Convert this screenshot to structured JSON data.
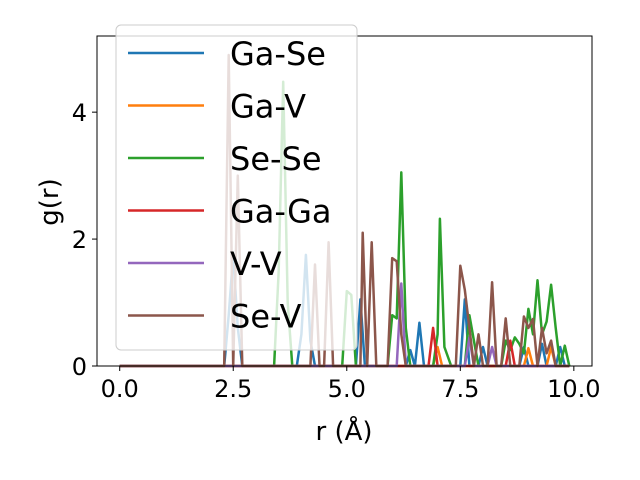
{
  "chart_data": {
    "type": "line",
    "title": "",
    "xlabel": "r (Å)",
    "ylabel": "g(r)",
    "xlim": [
      -0.5,
      10.4
    ],
    "ylim": [
      0,
      5.2
    ],
    "xticks": [
      0.0,
      2.5,
      5.0,
      7.5,
      10.0
    ],
    "xtick_labels": [
      "0.0",
      "2.5",
      "5.0",
      "7.5",
      "10.0"
    ],
    "yticks": [
      0,
      2,
      4
    ],
    "ytick_labels": [
      "0",
      "2",
      "4"
    ],
    "grid": false,
    "legend_position": "upper-left",
    "series": [
      {
        "name": "Ga-Se",
        "color": "#1f77b4",
        "points": [
          [
            0.0,
            0
          ],
          [
            2.3,
            0
          ],
          [
            2.4,
            0.8
          ],
          [
            2.5,
            1.75
          ],
          [
            2.6,
            0.6
          ],
          [
            2.7,
            0
          ],
          [
            3.9,
            0
          ],
          [
            4.0,
            0.5
          ],
          [
            4.1,
            1.75
          ],
          [
            4.2,
            0.4
          ],
          [
            4.3,
            0
          ],
          [
            5.2,
            0
          ],
          [
            5.3,
            1.05
          ],
          [
            5.4,
            0
          ],
          [
            6.3,
            0
          ],
          [
            6.4,
            0.25
          ],
          [
            6.5,
            0
          ],
          [
            6.6,
            0.68
          ],
          [
            6.7,
            0
          ],
          [
            7.5,
            0
          ],
          [
            7.6,
            1.05
          ],
          [
            7.7,
            0
          ],
          [
            7.9,
            0
          ],
          [
            8.0,
            0.3
          ],
          [
            8.1,
            0
          ],
          [
            8.8,
            0
          ],
          [
            8.9,
            0.3
          ],
          [
            9.0,
            0
          ],
          [
            9.2,
            0
          ],
          [
            9.3,
            0.35
          ],
          [
            9.4,
            0
          ],
          [
            9.6,
            0
          ],
          [
            9.7,
            0.3
          ],
          [
            9.8,
            0
          ],
          [
            9.9,
            0
          ]
        ]
      },
      {
        "name": "Ga-V",
        "color": "#ff7f0e",
        "points": [
          [
            0.0,
            0
          ],
          [
            6.9,
            0
          ],
          [
            7.0,
            0.3
          ],
          [
            7.1,
            0
          ],
          [
            8.9,
            0
          ],
          [
            9.0,
            0.28
          ],
          [
            9.1,
            0
          ],
          [
            9.4,
            0
          ],
          [
            9.5,
            0.3
          ],
          [
            9.6,
            0
          ],
          [
            9.9,
            0
          ]
        ]
      },
      {
        "name": "Se-Se",
        "color": "#2ca02c",
        "points": [
          [
            0.0,
            0
          ],
          [
            3.4,
            0
          ],
          [
            3.5,
            1.5
          ],
          [
            3.6,
            4.48
          ],
          [
            3.7,
            1.0
          ],
          [
            3.8,
            0
          ],
          [
            4.9,
            0
          ],
          [
            5.0,
            1.18
          ],
          [
            5.1,
            1.12
          ],
          [
            5.2,
            0
          ],
          [
            5.9,
            0
          ],
          [
            6.0,
            0.8
          ],
          [
            6.1,
            0.75
          ],
          [
            6.2,
            3.05
          ],
          [
            6.3,
            0.6
          ],
          [
            6.4,
            0
          ],
          [
            6.9,
            0
          ],
          [
            7.0,
            0.5
          ],
          [
            7.05,
            2.32
          ],
          [
            7.15,
            0.3
          ],
          [
            7.3,
            0
          ],
          [
            7.6,
            0
          ],
          [
            7.7,
            0.8
          ],
          [
            7.8,
            0.4
          ],
          [
            7.9,
            0
          ],
          [
            8.4,
            0
          ],
          [
            8.5,
            0.4
          ],
          [
            8.6,
            0.25
          ],
          [
            8.7,
            0.45
          ],
          [
            8.8,
            0.35
          ],
          [
            8.9,
            0.2
          ],
          [
            9.0,
            0.9
          ],
          [
            9.1,
            0.5
          ],
          [
            9.2,
            1.35
          ],
          [
            9.3,
            0.5
          ],
          [
            9.4,
            0.7
          ],
          [
            9.5,
            1.28
          ],
          [
            9.6,
            0.6
          ],
          [
            9.7,
            0
          ],
          [
            9.8,
            0.32
          ],
          [
            9.9,
            0
          ]
        ]
      },
      {
        "name": "Ga-Ga",
        "color": "#d62728",
        "points": [
          [
            0.0,
            0
          ],
          [
            6.8,
            0
          ],
          [
            6.9,
            0.6
          ],
          [
            7.0,
            0
          ],
          [
            8.5,
            0
          ],
          [
            8.6,
            0.4
          ],
          [
            8.7,
            0
          ],
          [
            9.9,
            0
          ]
        ]
      },
      {
        "name": "V-V",
        "color": "#9467bd",
        "points": [
          [
            0.0,
            0
          ],
          [
            6.1,
            0
          ],
          [
            6.2,
            1.3
          ],
          [
            6.3,
            0
          ],
          [
            7.6,
            0
          ],
          [
            7.7,
            0.45
          ],
          [
            7.8,
            0
          ],
          [
            8.1,
            0
          ],
          [
            8.2,
            0.3
          ],
          [
            8.3,
            0
          ],
          [
            9.9,
            0
          ]
        ]
      },
      {
        "name": "Se-V",
        "color": "#8c564b",
        "points": [
          [
            0.0,
            0
          ],
          [
            2.3,
            0
          ],
          [
            2.4,
            4.9
          ],
          [
            2.5,
            0
          ],
          [
            2.6,
            3.0
          ],
          [
            2.7,
            0
          ],
          [
            4.2,
            0
          ],
          [
            4.3,
            1.6
          ],
          [
            4.4,
            0
          ],
          [
            4.5,
            0
          ],
          [
            4.6,
            1.95
          ],
          [
            4.7,
            0
          ],
          [
            5.3,
            0
          ],
          [
            5.35,
            2.1
          ],
          [
            5.45,
            0
          ],
          [
            5.55,
            1.95
          ],
          [
            5.65,
            0
          ],
          [
            5.9,
            0
          ],
          [
            6.0,
            1.7
          ],
          [
            6.1,
            1.65
          ],
          [
            6.2,
            0.5
          ],
          [
            6.3,
            0
          ],
          [
            7.4,
            0
          ],
          [
            7.5,
            1.58
          ],
          [
            7.6,
            1.2
          ],
          [
            7.7,
            0.6
          ],
          [
            7.8,
            0
          ],
          [
            7.9,
            0.5
          ],
          [
            8.0,
            0
          ],
          [
            8.1,
            0
          ],
          [
            8.2,
            1.32
          ],
          [
            8.3,
            0
          ],
          [
            8.4,
            0
          ],
          [
            8.5,
            0.75
          ],
          [
            8.6,
            0
          ],
          [
            8.8,
            0
          ],
          [
            8.9,
            0.78
          ],
          [
            9.0,
            0.6
          ],
          [
            9.1,
            0.74
          ],
          [
            9.2,
            0
          ],
          [
            9.3,
            0.6
          ],
          [
            9.4,
            0.2
          ],
          [
            9.5,
            0.4
          ],
          [
            9.6,
            0
          ],
          [
            9.9,
            0
          ]
        ]
      }
    ]
  }
}
